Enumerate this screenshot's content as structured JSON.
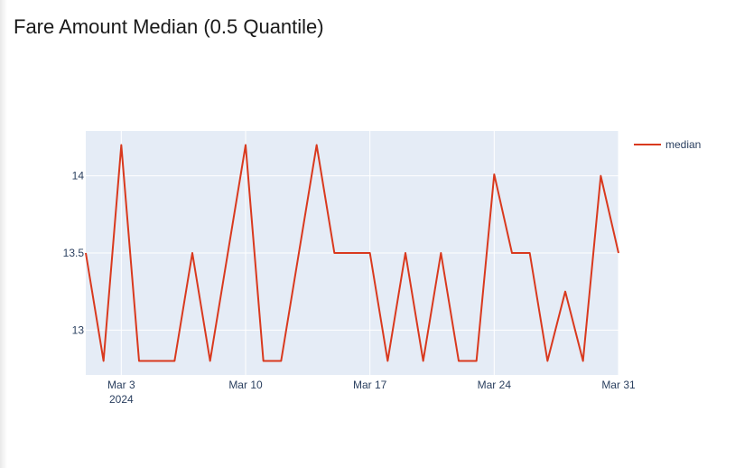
{
  "page": {
    "title": "Fare Amount Median (0.5 Quantile)"
  },
  "colors": {
    "plot_background": "#e5ecf6",
    "grid": "#ffffff",
    "line": "#d9391e",
    "tick_text": "#2a3f5f"
  },
  "chart_data": {
    "type": "line",
    "title": "Fare Amount Median (0.5 Quantile)",
    "xlabel": "",
    "ylabel": "",
    "x_axis_type": "date",
    "xlim": [
      "2024-03-01",
      "2024-03-31"
    ],
    "ylim": [
      12.8,
      14.2
    ],
    "grid": true,
    "legend_position": "top-right",
    "x_ticks": [
      {
        "date": "2024-03-03",
        "label": "Mar 3",
        "sublabel": "2024"
      },
      {
        "date": "2024-03-10",
        "label": "Mar 10",
        "sublabel": ""
      },
      {
        "date": "2024-03-17",
        "label": "Mar 17",
        "sublabel": ""
      },
      {
        "date": "2024-03-24",
        "label": "Mar 24",
        "sublabel": ""
      },
      {
        "date": "2024-03-31",
        "label": "Mar 31",
        "sublabel": ""
      }
    ],
    "y_ticks": [
      {
        "value": 13,
        "label": "13"
      },
      {
        "value": 13.5,
        "label": "13.5"
      },
      {
        "value": 14,
        "label": "14"
      }
    ],
    "series": [
      {
        "name": "median",
        "x": [
          "2024-03-01",
          "2024-03-02",
          "2024-03-03",
          "2024-03-04",
          "2024-03-05",
          "2024-03-06",
          "2024-03-07",
          "2024-03-08",
          "2024-03-09",
          "2024-03-10",
          "2024-03-11",
          "2024-03-12",
          "2024-03-13",
          "2024-03-14",
          "2024-03-15",
          "2024-03-16",
          "2024-03-17",
          "2024-03-18",
          "2024-03-19",
          "2024-03-20",
          "2024-03-21",
          "2024-03-22",
          "2024-03-23",
          "2024-03-24",
          "2024-03-25",
          "2024-03-26",
          "2024-03-27",
          "2024-03-28",
          "2024-03-29",
          "2024-03-30",
          "2024-03-31"
        ],
        "y": [
          13.5,
          12.8,
          14.2,
          12.8,
          12.8,
          12.8,
          13.5,
          12.8,
          13.5,
          14.2,
          12.8,
          12.8,
          13.5,
          14.2,
          13.5,
          13.5,
          13.5,
          12.8,
          13.5,
          12.8,
          13.5,
          12.8,
          12.8,
          14.01,
          13.5,
          13.5,
          12.8,
          13.25,
          12.8,
          14.0,
          13.5
        ]
      }
    ]
  }
}
